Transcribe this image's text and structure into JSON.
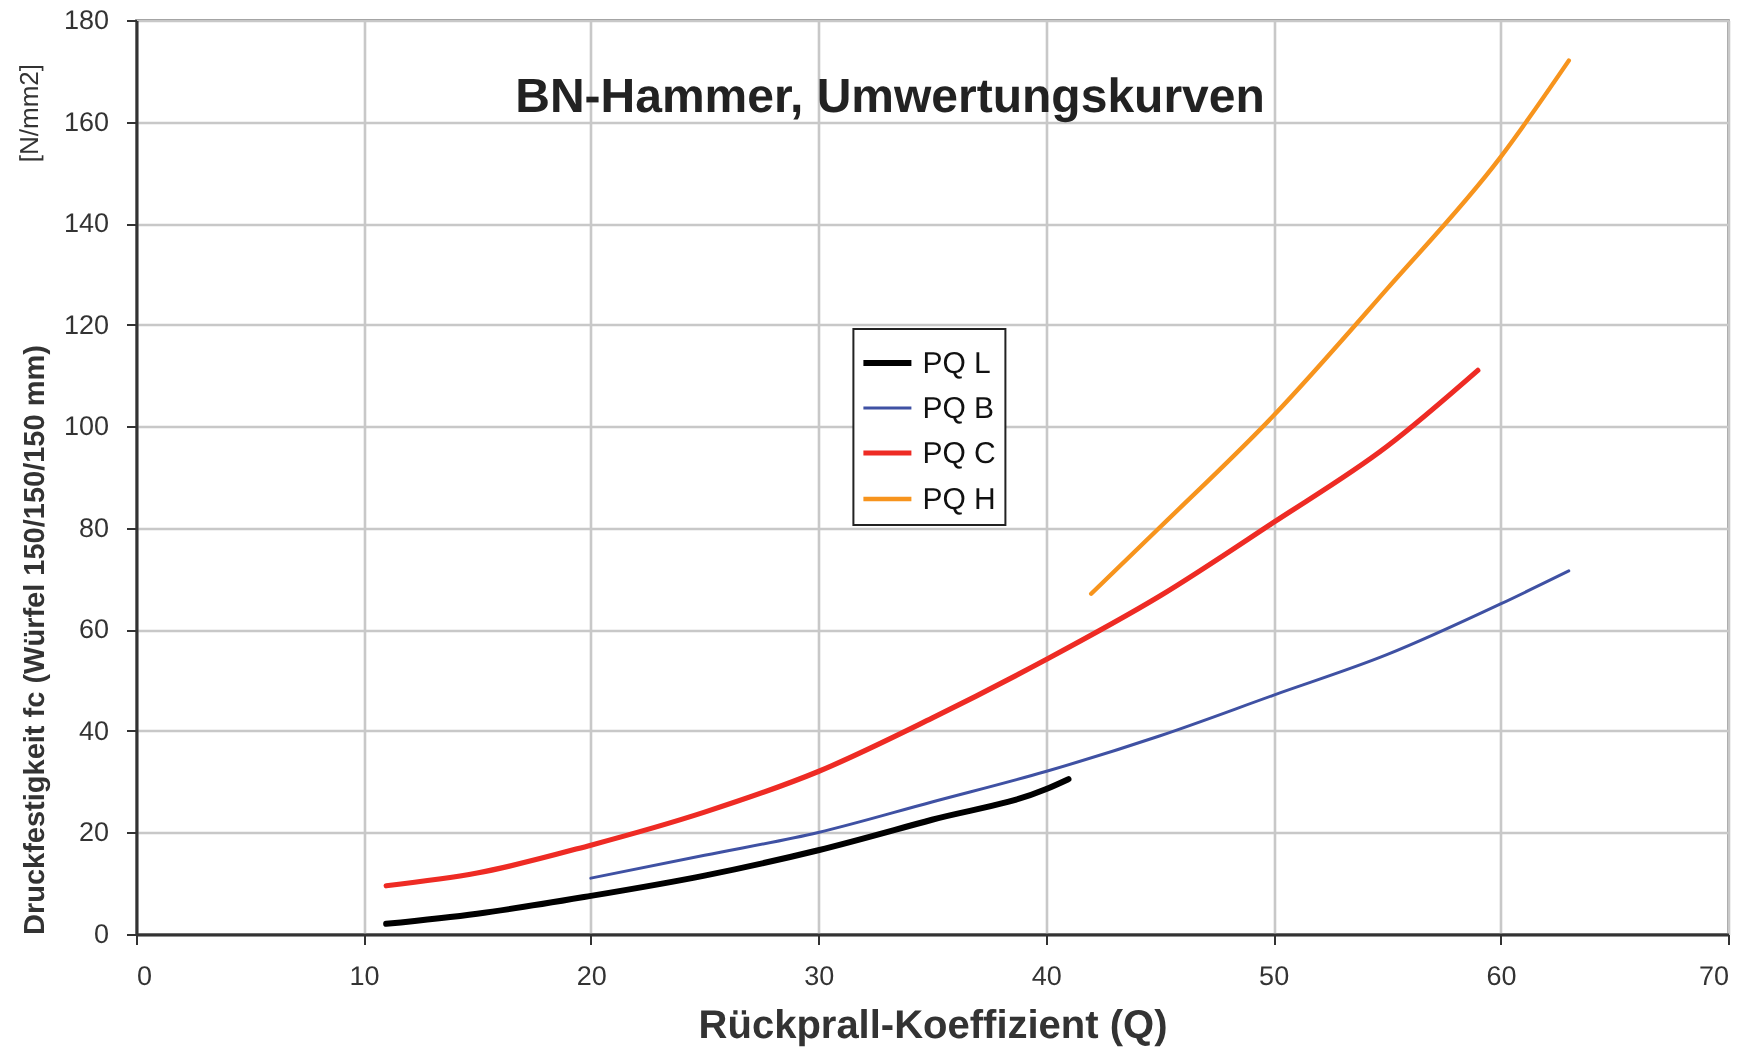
{
  "chart_data": {
    "type": "line",
    "title": "BN-Hammer, Umwertungskurven",
    "xlabel": "Rückprall-Koeffizient (Q)",
    "ylabel": "Druckfestigkeit fc (Würfel 150/150/150 mm)",
    "annotations": [
      "[N/mm2]"
    ],
    "series": [
      {
        "name": "PQ L",
        "color": "#000000",
        "x": [
          11,
          15,
          20,
          25,
          30,
          35,
          40,
          41
        ],
        "values": [
          2,
          4,
          7.5,
          11.5,
          16.5,
          22.5,
          28.5,
          30.5
        ]
      },
      {
        "name": "PQ B",
        "color": "#3f51a3",
        "x": [
          20,
          25,
          30,
          35,
          40,
          45,
          50,
          55,
          60,
          63
        ],
        "values": [
          11,
          15.5,
          20,
          26,
          32,
          39,
          47,
          55,
          65,
          71.5
        ]
      },
      {
        "name": "PQ C",
        "color": "#ee2b24",
        "x": [
          11,
          15,
          20,
          25,
          30,
          35,
          40,
          45,
          50,
          55,
          59
        ],
        "values": [
          9.5,
          12,
          17.5,
          24,
          32,
          42.5,
          54,
          66.5,
          81,
          96,
          111
        ]
      },
      {
        "name": "PQ H",
        "color": "#f7941d",
        "x": [
          42,
          45,
          50,
          55,
          60,
          63
        ],
        "values": [
          67,
          80,
          102,
          127,
          153,
          172
        ]
      }
    ],
    "xlim": [
      0,
      70
    ],
    "xticks": [
      0,
      10,
      20,
      30,
      40,
      50,
      60,
      70
    ],
    "ylim": [
      0,
      180
    ],
    "yticks": [
      0,
      20,
      40,
      60,
      80,
      100,
      120,
      140,
      160,
      180
    ],
    "grid": true,
    "legend": "center"
  }
}
